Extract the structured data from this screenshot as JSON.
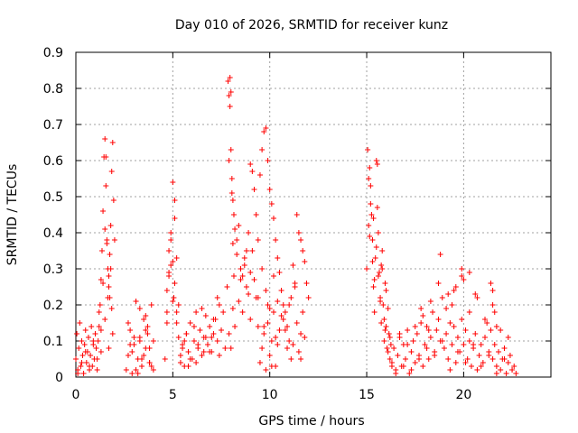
{
  "chart_data": {
    "type": "scatter",
    "title": "Day 010 of 2026, SRMTID for receiver kunz",
    "xlabel": "GPS time / hours",
    "ylabel": "SRMTID / TECUs",
    "xlim": [
      0,
      24.5
    ],
    "ylim": [
      0,
      0.9
    ],
    "grid": true,
    "marker": "plus",
    "color": "#ff0000",
    "x_ticks": [
      0,
      5,
      10,
      15,
      20
    ],
    "x_tick_labels": [
      "0",
      "5",
      "10",
      "15",
      "20"
    ],
    "y_ticks": [
      0,
      0.1,
      0.2,
      0.3,
      0.4,
      0.5,
      0.6,
      0.7,
      0.8,
      0.9
    ],
    "y_tick_labels": [
      "0",
      "0.1",
      "0.2",
      "0.3",
      "0.4",
      "0.5",
      "0.6",
      "0.7",
      "0.8",
      "0.9"
    ],
    "series": [
      {
        "name": "SRMTID",
        "x": [
          0.0,
          0.05,
          0.1,
          0.15,
          0.2,
          0.25,
          0.3,
          0.35,
          0.4,
          0.45,
          0.5,
          0.55,
          0.6,
          0.65,
          0.7,
          0.75,
          0.8,
          0.85,
          0.9,
          0.95,
          1.0,
          1.05,
          1.1,
          1.15,
          1.2,
          1.25,
          1.3,
          1.35,
          1.4,
          1.45,
          1.5,
          1.55,
          1.6,
          1.65,
          1.7,
          1.75,
          1.8,
          1.85,
          1.9,
          1.95,
          2.0,
          0.1,
          0.3,
          0.5,
          0.7,
          0.9,
          1.1,
          1.3,
          1.5,
          1.7,
          1.9,
          1.5,
          1.6,
          1.7,
          1.75,
          1.8,
          1.85,
          1.4,
          1.55,
          1.65,
          1.2,
          1.3,
          2.6,
          2.7,
          2.8,
          2.9,
          3.0,
          3.1,
          3.2,
          3.3,
          3.4,
          3.5,
          3.6,
          3.7,
          3.8,
          3.9,
          4.0,
          2.7,
          2.9,
          3.1,
          3.3,
          3.5,
          3.7,
          3.9,
          2.8,
          3.0,
          3.2,
          3.4,
          3.6,
          3.8,
          3.6,
          3.8,
          4.0,
          3.1,
          3.3,
          4.6,
          4.7,
          4.8,
          4.9,
          5.0,
          5.1,
          5.2,
          5.3,
          5.4,
          5.5,
          5.6,
          5.7,
          5.8,
          5.9,
          6.0,
          6.1,
          6.2,
          6.3,
          6.4,
          6.5,
          6.6,
          6.7,
          6.8,
          6.9,
          7.0,
          7.1,
          7.2,
          7.3,
          7.4,
          7.5,
          7.6,
          7.7,
          4.7,
          4.9,
          5.1,
          5.3,
          5.5,
          5.7,
          5.9,
          6.1,
          6.3,
          6.5,
          6.7,
          6.9,
          7.1,
          7.3,
          7.5,
          4.8,
          5.0,
          5.2,
          5.4,
          5.6,
          5.8,
          6.2,
          6.6,
          7.0,
          7.4,
          4.9,
          5.0,
          5.05,
          4.8,
          4.7,
          5.1,
          5.2,
          7.8,
          7.85,
          7.9,
          7.95,
          8.0,
          8.05,
          8.1,
          8.15,
          8.2,
          8.3,
          8.4,
          8.5,
          8.6,
          8.7,
          8.8,
          8.9,
          9.0,
          9.1,
          9.2,
          9.3,
          9.4,
          9.5,
          9.6,
          9.7,
          9.8,
          9.9,
          10.0,
          10.1,
          10.2,
          10.3,
          10.4,
          10.5,
          10.6,
          10.7,
          10.8,
          10.9,
          11.0,
          11.1,
          11.2,
          11.3,
          11.4,
          11.5,
          11.6,
          11.7,
          11.8,
          11.9,
          12.0,
          7.9,
          8.0,
          8.1,
          8.2,
          8.4,
          8.6,
          8.8,
          9.0,
          9.2,
          9.4,
          9.6,
          9.8,
          10.0,
          10.2,
          10.4,
          10.6,
          10.8,
          11.0,
          11.2,
          11.4,
          11.6,
          11.8,
          7.95,
          8.0,
          8.05,
          7.9,
          8.1,
          8.15,
          9.5,
          9.6,
          9.7,
          9.8,
          9.9,
          10.0,
          10.1,
          10.2,
          10.3,
          10.4,
          10.5,
          9.3,
          9.4,
          9.1,
          9.0,
          8.9,
          8.7,
          8.5,
          8.3,
          11.5,
          11.7,
          11.6,
          11.3,
          11.1,
          10.9,
          10.7,
          10.3,
          10.1,
          9.9,
          9.7,
          15.0,
          15.05,
          15.1,
          15.15,
          15.2,
          15.25,
          15.3,
          15.35,
          15.4,
          15.45,
          15.5,
          15.55,
          15.6,
          15.65,
          15.7,
          15.75,
          15.8,
          15.85,
          15.9,
          15.95,
          16.0,
          16.05,
          16.1,
          16.15,
          16.2,
          16.25,
          16.3,
          15.1,
          15.2,
          15.3,
          15.4,
          15.5,
          15.6,
          15.7,
          15.8,
          15.9,
          16.0,
          16.1,
          16.2,
          15.15,
          15.35,
          15.55,
          15.75,
          15.95,
          16.3,
          16.4,
          16.5,
          16.6,
          16.7,
          16.8,
          16.9,
          17.0,
          17.1,
          17.2,
          17.3,
          17.4,
          17.5,
          17.6,
          17.7,
          17.8,
          17.9,
          18.0,
          18.1,
          18.2,
          18.3,
          18.4,
          18.5,
          18.6,
          18.7,
          18.8,
          18.9,
          19.0,
          19.1,
          19.2,
          19.3,
          19.4,
          19.5,
          19.6,
          19.7,
          19.8,
          19.9,
          20.0,
          20.1,
          20.2,
          20.3,
          20.4,
          20.5,
          20.6,
          20.7,
          20.8,
          20.9,
          21.0,
          21.1,
          21.2,
          21.3,
          21.4,
          21.5,
          21.6,
          21.7,
          21.8,
          21.9,
          22.0,
          22.1,
          22.2,
          22.3,
          22.4,
          22.5,
          22.6,
          22.7,
          16.5,
          16.9,
          17.3,
          17.7,
          18.1,
          18.5,
          18.9,
          19.3,
          19.7,
          20.1,
          20.5,
          20.9,
          21.3,
          21.7,
          22.1,
          22.5,
          16.7,
          17.1,
          17.5,
          17.9,
          18.3,
          18.7,
          19.1,
          19.5,
          19.9,
          20.3,
          20.7,
          21.1,
          21.5,
          21.9,
          22.3,
          18.8,
          19.9,
          20.0,
          19.6,
          19.4,
          19.2,
          21.4,
          21.5,
          21.6,
          21.7,
          20.3,
          20.6,
          18.2,
          17.8
        ],
        "y": [
          0.05,
          0.12,
          0.02,
          0.08,
          0.15,
          0.03,
          0.1,
          0.06,
          0.01,
          0.09,
          0.13,
          0.04,
          0.07,
          0.11,
          0.02,
          0.06,
          0.14,
          0.03,
          0.09,
          0.05,
          0.12,
          0.08,
          0.02,
          0.1,
          0.18,
          0.2,
          0.27,
          0.35,
          0.46,
          0.61,
          0.66,
          0.53,
          0.38,
          0.3,
          0.25,
          0.22,
          0.42,
          0.57,
          0.65,
          0.49,
          0.38,
          0.01,
          0.04,
          0.07,
          0.03,
          0.1,
          0.05,
          0.13,
          0.16,
          0.08,
          0.12,
          0.41,
          0.37,
          0.28,
          0.34,
          0.3,
          0.19,
          0.26,
          0.61,
          0.22,
          0.14,
          0.07,
          0.02,
          0.06,
          0.13,
          0.01,
          0.09,
          0.21,
          0.05,
          0.11,
          0.03,
          0.16,
          0.08,
          0.12,
          0.04,
          0.2,
          0.1,
          0.15,
          0.07,
          0.02,
          0.19,
          0.06,
          0.14,
          0.03,
          0.09,
          0.11,
          0.01,
          0.05,
          0.17,
          0.08,
          0.13,
          0.04,
          0.02,
          0.21,
          0.1,
          0.05,
          0.24,
          0.35,
          0.31,
          0.54,
          0.49,
          0.18,
          0.11,
          0.06,
          0.09,
          0.03,
          0.12,
          0.07,
          0.15,
          0.05,
          0.1,
          0.04,
          0.08,
          0.13,
          0.06,
          0.11,
          0.17,
          0.09,
          0.14,
          0.07,
          0.12,
          0.16,
          0.1,
          0.2,
          0.13,
          0.18,
          0.08,
          0.15,
          0.4,
          0.26,
          0.2,
          0.08,
          0.12,
          0.05,
          0.14,
          0.09,
          0.19,
          0.11,
          0.07,
          0.16,
          0.22,
          0.13,
          0.28,
          0.21,
          0.15,
          0.04,
          0.1,
          0.03,
          0.18,
          0.07,
          0.11,
          0.06,
          0.38,
          0.32,
          0.22,
          0.29,
          0.18,
          0.44,
          0.33,
          0.25,
          0.82,
          0.78,
          0.75,
          0.63,
          0.55,
          0.49,
          0.45,
          0.41,
          0.38,
          0.42,
          0.3,
          0.28,
          0.33,
          0.35,
          0.4,
          0.59,
          0.57,
          0.52,
          0.45,
          0.38,
          0.56,
          0.63,
          0.68,
          0.69,
          0.6,
          0.52,
          0.48,
          0.44,
          0.38,
          0.33,
          0.29,
          0.24,
          0.2,
          0.18,
          0.14,
          0.1,
          0.22,
          0.31,
          0.26,
          0.45,
          0.4,
          0.38,
          0.35,
          0.32,
          0.26,
          0.22,
          0.12,
          0.08,
          0.19,
          0.14,
          0.21,
          0.18,
          0.25,
          0.16,
          0.27,
          0.22,
          0.3,
          0.24,
          0.19,
          0.28,
          0.21,
          0.17,
          0.13,
          0.2,
          0.09,
          0.15,
          0.05,
          0.11,
          0.83,
          0.79,
          0.51,
          0.6,
          0.37,
          0.28,
          0.04,
          0.08,
          0.12,
          0.02,
          0.15,
          0.06,
          0.1,
          0.18,
          0.03,
          0.09,
          0.13,
          0.22,
          0.14,
          0.35,
          0.29,
          0.23,
          0.31,
          0.27,
          0.34,
          0.07,
          0.18,
          0.12,
          0.25,
          0.05,
          0.08,
          0.16,
          0.11,
          0.03,
          0.2,
          0.14,
          0.3,
          0.63,
          0.42,
          0.58,
          0.53,
          0.45,
          0.38,
          0.25,
          0.18,
          0.33,
          0.6,
          0.47,
          0.4,
          0.29,
          0.22,
          0.15,
          0.35,
          0.2,
          0.1,
          0.26,
          0.14,
          0.08,
          0.19,
          0.12,
          0.05,
          0.09,
          0.03,
          0.55,
          0.48,
          0.32,
          0.27,
          0.36,
          0.28,
          0.21,
          0.3,
          0.16,
          0.24,
          0.07,
          0.11,
          0.39,
          0.44,
          0.59,
          0.31,
          0.13,
          0.04,
          0.08,
          0.02,
          0.06,
          0.11,
          0.03,
          0.09,
          0.05,
          0.13,
          0.01,
          0.07,
          0.1,
          0.04,
          0.12,
          0.06,
          0.15,
          0.03,
          0.09,
          0.14,
          0.05,
          0.11,
          0.18,
          0.07,
          0.13,
          0.16,
          0.1,
          0.22,
          0.08,
          0.12,
          0.05,
          0.15,
          0.09,
          0.14,
          0.04,
          0.11,
          0.07,
          0.16,
          0.09,
          0.13,
          0.05,
          0.1,
          0.03,
          0.08,
          0.12,
          0.02,
          0.06,
          0.09,
          0.04,
          0.11,
          0.15,
          0.07,
          0.13,
          0.05,
          0.09,
          0.03,
          0.07,
          0.02,
          0.05,
          0.08,
          0.01,
          0.04,
          0.06,
          0.02,
          0.03,
          0.01,
          0.01,
          0.03,
          0.02,
          0.05,
          0.08,
          0.06,
          0.1,
          0.02,
          0.07,
          0.04,
          0.09,
          0.03,
          0.06,
          0.01,
          0.05,
          0.02,
          0.12,
          0.09,
          0.14,
          0.17,
          0.21,
          0.26,
          0.19,
          0.24,
          0.28,
          0.18,
          0.22,
          0.16,
          0.2,
          0.13,
          0.11,
          0.34,
          0.3,
          0.27,
          0.25,
          0.2,
          0.23,
          0.26,
          0.24,
          0.18,
          0.14,
          0.29,
          0.23,
          0.13,
          0.19
        ]
      }
    ]
  }
}
